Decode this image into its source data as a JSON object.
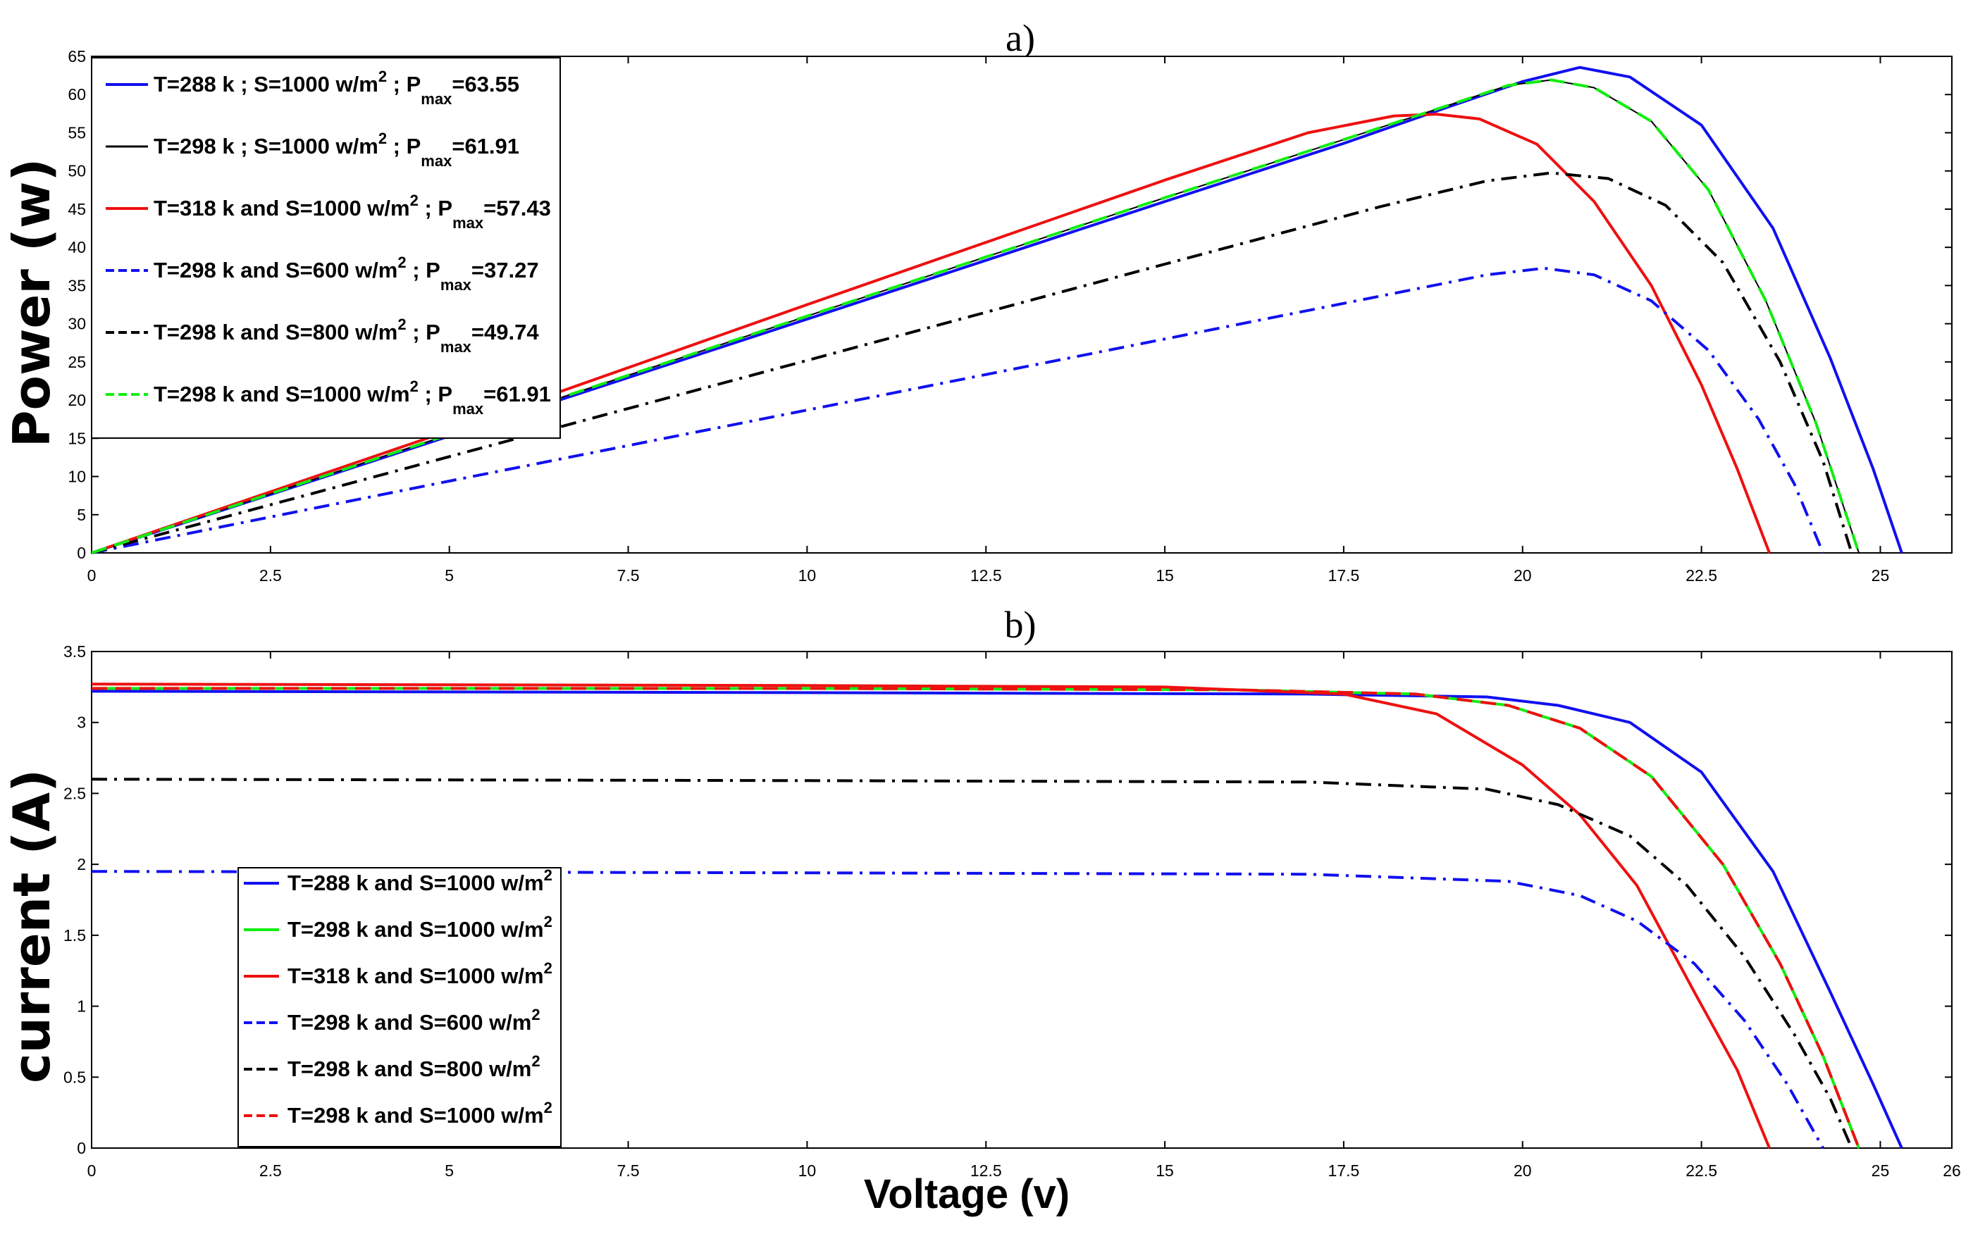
{
  "colors": {
    "blue": "#1010f0",
    "black": "#000000",
    "red": "#ee1010",
    "green": "#10ee10"
  },
  "chart_data": [
    {
      "type": "line",
      "title": "a)",
      "xlabel": "",
      "ylabel": "Power (w)",
      "xlim": [
        0,
        26
      ],
      "ylim": [
        0,
        65
      ],
      "xticks": [
        "0",
        "2.5",
        "5",
        "7.5",
        "10",
        "12.5",
        "15",
        "17.5",
        "20",
        "22.5",
        "25"
      ],
      "yticks": [
        "0",
        "5",
        "10",
        "15",
        "20",
        "25",
        "30",
        "35",
        "40",
        "45",
        "50",
        "55",
        "60",
        "65"
      ],
      "legend_position": "top-left",
      "series": [
        {
          "name": "T=288 k ; S=1000 w/m2 ; Pmax=63.55",
          "color": "blue",
          "dash": "solid",
          "width": 4,
          "label": {
            "main": "T=288 k ; S=1000 w/m",
            "sup": "2",
            "mid": " ; P",
            "sub": "max",
            "end": "=63.55"
          },
          "x": [
            0,
            5,
            10,
            15,
            17.5,
            19,
            20,
            20.8,
            21.5,
            22.5,
            23.5,
            24.3,
            24.9,
            25.3
          ],
          "y": [
            0,
            15.3,
            30.6,
            46,
            53.6,
            58.5,
            61.7,
            63.55,
            62.3,
            56,
            42.5,
            25.5,
            11,
            0
          ]
        },
        {
          "name": "T=298 k ; S=1000 w/m2 ; Pmax=61.91",
          "color": "black",
          "dash": "solid",
          "width": 2,
          "label": {
            "main": "T=298 k ; S=1000 w/m",
            "sup": "2",
            "mid": " ; P",
            "sub": "max",
            "end": "=61.91"
          },
          "x": [
            0,
            5,
            10,
            15,
            17.5,
            19,
            19.8,
            20.4,
            21,
            21.8,
            22.6,
            23.4,
            24.1,
            24.7
          ],
          "y": [
            0,
            15.5,
            31,
            46.5,
            54.1,
            58.7,
            61.2,
            61.91,
            60.9,
            56.5,
            47.5,
            33,
            17,
            0
          ]
        },
        {
          "name": "T=318 k and S=1000 w/m2 ; Pmax=57.43",
          "color": "red",
          "dash": "solid",
          "width": 4,
          "label": {
            "main": "T=318 k and  S=1000 w/m",
            "sup": "2",
            "mid": "  ; P",
            "sub": "max",
            "end": "=57.43"
          },
          "x": [
            0,
            5,
            10,
            15,
            17,
            18.2,
            18.8,
            19.4,
            20.2,
            21,
            21.8,
            22.5,
            23,
            23.45
          ],
          "y": [
            0,
            16,
            32.5,
            48.8,
            55,
            57.2,
            57.43,
            56.8,
            53.5,
            46,
            35,
            22,
            11,
            0
          ]
        },
        {
          "name": "T=298 k and S=600 w/m2 ; Pmax=37.27",
          "color": "blue",
          "dash": "dashdot",
          "width": 4,
          "label": {
            "main": "T=298 k and  S=600 w/m",
            "sup": "2",
            "mid": " ; P",
            "sub": "max",
            "end": "=37.27"
          },
          "x": [
            0,
            5,
            10,
            15,
            18,
            19.5,
            20.3,
            21,
            21.8,
            22.6,
            23.3,
            23.8,
            24.2
          ],
          "y": [
            0,
            9.4,
            18.7,
            28,
            33.6,
            36.4,
            37.27,
            36.4,
            33,
            26.5,
            17.5,
            9,
            0
          ]
        },
        {
          "name": "T=298 k and S=800 w/m2 ; Pmax=49.74",
          "color": "black",
          "dash": "dashdot",
          "width": 4,
          "label": {
            "main": "T=298 k and  S=800 w/m",
            "sup": "2",
            "mid": " ; P",
            "sub": "max",
            "end": "=49.74"
          },
          "x": [
            0,
            5,
            10,
            15,
            18,
            19.5,
            20.4,
            21.2,
            22,
            22.8,
            23.6,
            24.2,
            24.6
          ],
          "y": [
            0,
            12.6,
            25.2,
            37.8,
            45.3,
            48.7,
            49.74,
            49,
            45.5,
            38,
            25,
            12,
            0
          ]
        },
        {
          "name": "T=298 k and S=1000 w/m2 ; Pmax=61.91",
          "color": "green",
          "dash": "dashed",
          "width": 4,
          "label": {
            "main": "T=298 k and  S=1000 w/m",
            "sup": "2",
            "mid": " ; P",
            "sub": "max",
            "end": "=61.91"
          },
          "x": [
            0,
            5,
            10,
            15,
            17.5,
            19,
            19.8,
            20.4,
            21,
            21.8,
            22.6,
            23.4,
            24.1,
            24.7
          ],
          "y": [
            0,
            15.5,
            31,
            46.5,
            54.1,
            58.7,
            61.2,
            61.91,
            60.9,
            56.5,
            47.5,
            33,
            17,
            0
          ]
        }
      ]
    },
    {
      "type": "line",
      "title": "b)",
      "xlabel": "Voltage (v)",
      "ylabel": "current (A)",
      "xlim": [
        0,
        26
      ],
      "ylim": [
        0,
        3.5
      ],
      "xticks": [
        "0",
        "2.5",
        "5",
        "7.5",
        "10",
        "12.5",
        "15",
        "17.5",
        "20",
        "22.5",
        "25",
        "26"
      ],
      "yticks": [
        "0",
        "0.5",
        "1",
        "1.5",
        "2",
        "2.5",
        "3",
        "3.5"
      ],
      "legend_position": "bottom-left",
      "series": [
        {
          "name": "T=288 k and S=1000 w/m2",
          "color": "blue",
          "dash": "solid",
          "width": 4,
          "label": {
            "main": "T=288 k and S=1000 w/m",
            "sup": "2"
          },
          "x": [
            0,
            10,
            17,
            19.5,
            20.5,
            21.5,
            22.5,
            23.5,
            24.3,
            24.9,
            25.3
          ],
          "y": [
            3.22,
            3.21,
            3.2,
            3.18,
            3.12,
            3.0,
            2.65,
            1.95,
            1.1,
            0.45,
            0
          ]
        },
        {
          "name": "T=298 k and S=1000 w/m2",
          "color": "green",
          "dash": "solid",
          "width": 4,
          "label": {
            "main": "T=298 k and S=1000 w/m",
            "sup": "2"
          },
          "x": [
            0,
            10,
            16,
            18.5,
            19.8,
            20.8,
            21.8,
            22.8,
            23.6,
            24.2,
            24.7
          ],
          "y": [
            3.24,
            3.24,
            3.23,
            3.2,
            3.12,
            2.96,
            2.62,
            2.0,
            1.3,
            0.65,
            0
          ]
        },
        {
          "name": "T=318 k and S=1000 w/m2",
          "color": "red",
          "dash": "solid",
          "width": 4,
          "label": {
            "main": "T=318 k and S=1000 w/m",
            "sup": "2"
          },
          "x": [
            0,
            10,
            15,
            17.5,
            18.8,
            20,
            20.8,
            21.6,
            22.4,
            23,
            23.45
          ],
          "y": [
            3.27,
            3.26,
            3.25,
            3.2,
            3.06,
            2.7,
            2.35,
            1.85,
            1.1,
            0.55,
            0
          ]
        },
        {
          "name": "T=298 k and S=600 w/m2",
          "color": "blue",
          "dash": "dashdot",
          "width": 4,
          "label": {
            "main": "T=298 k and S=600 w/m",
            "sup": "2"
          },
          "x": [
            0,
            10,
            17,
            19.8,
            20.8,
            21.6,
            22.4,
            23.1,
            23.7,
            24.2
          ],
          "y": [
            1.95,
            1.94,
            1.93,
            1.88,
            1.78,
            1.6,
            1.3,
            0.9,
            0.45,
            0
          ]
        },
        {
          "name": "T=298 k and S=800 w/m2",
          "color": "black",
          "dash": "dashdot",
          "width": 4,
          "label": {
            "main": "T=298 k and S=800 w/m",
            "sup": "2"
          },
          "x": [
            0,
            10,
            17,
            19.5,
            20.5,
            21.5,
            22.3,
            23.1,
            23.8,
            24.3,
            24.6
          ],
          "y": [
            2.6,
            2.59,
            2.58,
            2.53,
            2.42,
            2.2,
            1.85,
            1.35,
            0.8,
            0.35,
            0
          ]
        },
        {
          "name": "T=298 k and S=1000 w/m2",
          "color": "red",
          "dash": "dashed",
          "width": 4,
          "label": {
            "main": "T=298 k and S=1000 w/m",
            "sup": "2"
          },
          "x": [
            0,
            10,
            16,
            18.5,
            19.8,
            20.8,
            21.8,
            22.8,
            23.6,
            24.2,
            24.7
          ],
          "y": [
            3.24,
            3.24,
            3.23,
            3.2,
            3.12,
            2.96,
            2.62,
            2.0,
            1.3,
            0.65,
            0
          ]
        }
      ]
    }
  ]
}
